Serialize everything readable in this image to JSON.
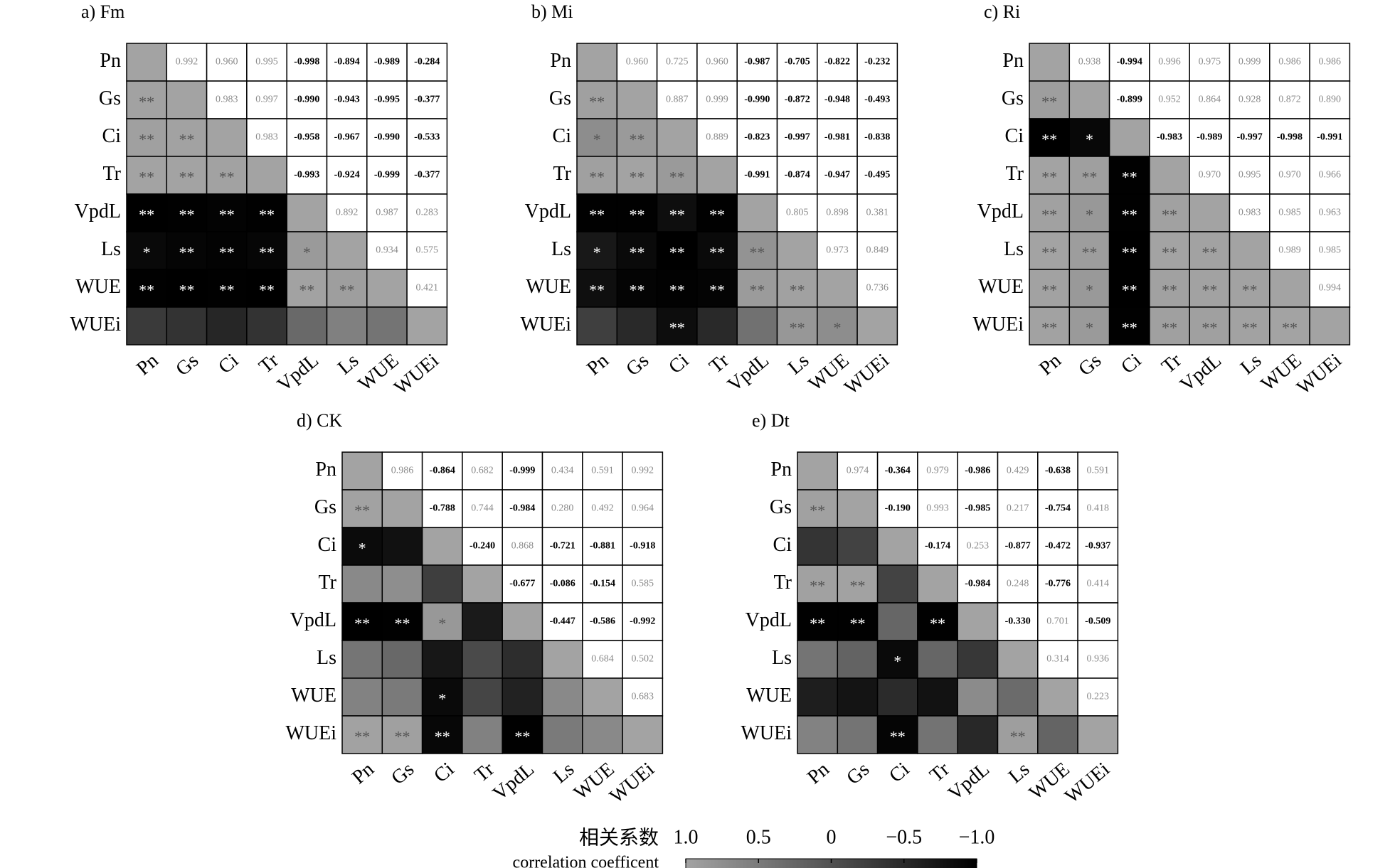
{
  "chart_data": [
    {
      "type": "heatmap",
      "title": "a) Fm",
      "labels": [
        "Pn",
        "Gs",
        "Ci",
        "Tr",
        "VpdL",
        "Ls",
        "WUE",
        "WUEi"
      ],
      "values": [
        [
          0.992,
          0.96,
          0.995,
          -0.998,
          -0.894,
          -0.989,
          -0.284
        ],
        [
          0.983,
          0.997,
          -0.99,
          -0.943,
          -0.995,
          -0.377
        ],
        [
          0.983,
          -0.958,
          -0.967,
          -0.99,
          -0.533
        ],
        [
          -0.993,
          -0.924,
          -0.999,
          -0.377
        ],
        [
          0.892,
          0.987,
          0.283
        ],
        [
          0.934,
          0.575
        ],
        [
          0.421
        ]
      ],
      "value_labels": [
        [
          "0.992",
          "0.960",
          "0.995",
          "-0.998",
          "-0.894",
          "-0.989",
          "-0.284"
        ],
        [
          "0.983",
          "0.997",
          "-0.990",
          "-0.943",
          "-0.995",
          "-0.377"
        ],
        [
          "0.983",
          "-0.958",
          "-0.967",
          "-0.990",
          "-0.533"
        ],
        [
          "-0.993",
          "-0.924",
          "-0.999",
          "-0.377"
        ],
        [
          "0.892",
          "0.987",
          "0.283"
        ],
        [
          "0.934",
          "0.575"
        ],
        [
          "0.421"
        ]
      ],
      "significance": [
        [
          "**"
        ],
        [
          "**",
          "**"
        ],
        [
          "**",
          "**",
          "**"
        ],
        [
          "**",
          "**",
          "**",
          "**"
        ],
        [
          "*",
          "**",
          "**",
          "**",
          "*"
        ],
        [
          "**",
          "**",
          "**",
          "**",
          "**",
          "**"
        ],
        [
          null,
          null,
          null,
          null,
          null,
          null,
          null
        ]
      ]
    },
    {
      "type": "heatmap",
      "title": "b) Mi",
      "labels": [
        "Pn",
        "Gs",
        "Ci",
        "Tr",
        "VpdL",
        "Ls",
        "WUE",
        "WUEi"
      ],
      "values": [
        [
          0.96,
          0.725,
          0.96,
          -0.987,
          -0.705,
          -0.822,
          -0.232
        ],
        [
          0.887,
          0.999,
          -0.99,
          -0.872,
          -0.948,
          -0.493
        ],
        [
          0.889,
          -0.823,
          -0.997,
          -0.981,
          -0.838
        ],
        [
          -0.991,
          -0.874,
          -0.947,
          -0.495
        ],
        [
          0.805,
          0.898,
          0.381
        ],
        [
          0.973,
          0.849
        ],
        [
          0.736
        ]
      ],
      "value_labels": [
        [
          "0.960",
          "0.725",
          "0.960",
          "-0.987",
          "-0.705",
          "-0.822",
          "-0.232"
        ],
        [
          "0.887",
          "0.999",
          "-0.990",
          "-0.872",
          "-0.948",
          "-0.493"
        ],
        [
          "0.889",
          "-0.823",
          "-0.997",
          "-0.981",
          "-0.838"
        ],
        [
          "-0.991",
          "-0.874",
          "-0.947",
          "-0.495"
        ],
        [
          "0.805",
          "0.898",
          "0.381"
        ],
        [
          "0.973",
          "0.849"
        ],
        [
          "0.736"
        ]
      ],
      "significance": [
        [
          "**"
        ],
        [
          "*",
          "**"
        ],
        [
          "**",
          "**",
          "**"
        ],
        [
          "**",
          "**",
          "**",
          "**"
        ],
        [
          "*",
          "**",
          "**",
          "**",
          "**"
        ],
        [
          "**",
          "**",
          "**",
          "**",
          "**",
          "**"
        ],
        [
          null,
          null,
          "**",
          null,
          null,
          "**",
          "*"
        ]
      ]
    },
    {
      "type": "heatmap",
      "title": "c) Ri",
      "labels": [
        "Pn",
        "Gs",
        "Ci",
        "Tr",
        "VpdL",
        "Ls",
        "WUE",
        "WUEi"
      ],
      "values": [
        [
          0.938,
          -0.994,
          0.996,
          0.975,
          0.999,
          0.986,
          0.986
        ],
        [
          -0.899,
          0.952,
          0.864,
          0.928,
          0.872,
          0.89
        ],
        [
          -0.983,
          -0.989,
          -0.997,
          -0.998,
          -0.991
        ],
        [
          0.97,
          0.995,
          0.97,
          0.966
        ],
        [
          0.983,
          0.985,
          0.963
        ],
        [
          0.989,
          0.985
        ],
        [
          0.994
        ]
      ],
      "value_labels": [
        [
          "0.938",
          "-0.994",
          "0.996",
          "0.975",
          "0.999",
          "0.986",
          "0.986"
        ],
        [
          "-0.899",
          "0.952",
          "0.864",
          "0.928",
          "0.872",
          "0.890"
        ],
        [
          "-0.983",
          "-0.989",
          "-0.997",
          "-0.998",
          "-0.991"
        ],
        [
          "0.970",
          "0.995",
          "0.970",
          "0.966"
        ],
        [
          "0.983",
          "0.985",
          "0.963"
        ],
        [
          "0.989",
          "0.985"
        ],
        [
          "0.994"
        ]
      ],
      "significance": [
        [
          "**"
        ],
        [
          "**",
          "*"
        ],
        [
          "**",
          "**",
          "**"
        ],
        [
          "**",
          "*",
          "**",
          "**"
        ],
        [
          "**",
          "**",
          "**",
          "**",
          "**"
        ],
        [
          "**",
          "*",
          "**",
          "**",
          "**",
          "**"
        ],
        [
          "**",
          "*",
          "**",
          "**",
          "**",
          "**",
          "**"
        ]
      ]
    },
    {
      "type": "heatmap",
      "title": "d) CK",
      "labels": [
        "Pn",
        "Gs",
        "Ci",
        "Tr",
        "VpdL",
        "Ls",
        "WUE",
        "WUEi"
      ],
      "values": [
        [
          0.986,
          -0.864,
          0.682,
          -0.999,
          0.434,
          0.591,
          0.992
        ],
        [
          -0.788,
          0.744,
          -0.984,
          0.28,
          0.492,
          0.964
        ],
        [
          -0.24,
          0.868,
          -0.721,
          -0.881,
          -0.918
        ],
        [
          -0.677,
          -0.086,
          -0.154,
          0.585
        ],
        [
          -0.447,
          -0.586,
          -0.992
        ],
        [
          0.684,
          0.502
        ],
        [
          0.683
        ]
      ],
      "value_labels": [
        [
          "0.986",
          "-0.864",
          "0.682",
          "-0.999",
          "0.434",
          "0.591",
          "0.992"
        ],
        [
          "-0.788",
          "0.744",
          "-0.984",
          "0.280",
          "0.492",
          "0.964"
        ],
        [
          "-0.240",
          "0.868",
          "-0.721",
          "-0.881",
          "-0.918"
        ],
        [
          "-0.677",
          "-0.086",
          "-0.154",
          "0.585"
        ],
        [
          "-0.447",
          "-0.586",
          "-0.992"
        ],
        [
          "0.684",
          "0.502"
        ],
        [
          "0.683"
        ]
      ],
      "significance": [
        [
          "**"
        ],
        [
          "*",
          null
        ],
        [
          null,
          null,
          null
        ],
        [
          "**",
          "**",
          "*",
          null
        ],
        [
          null,
          null,
          null,
          null,
          null
        ],
        [
          null,
          null,
          "*",
          null,
          null,
          null
        ],
        [
          "**",
          "**",
          "**",
          null,
          "**",
          null,
          null
        ]
      ]
    },
    {
      "type": "heatmap",
      "title": "e) Dt",
      "labels": [
        "Pn",
        "Gs",
        "Ci",
        "Tr",
        "VpdL",
        "Ls",
        "WUE",
        "WUEi"
      ],
      "values": [
        [
          0.974,
          -0.364,
          0.979,
          -0.986,
          0.429,
          -0.638,
          0.591
        ],
        [
          -0.19,
          0.993,
          -0.985,
          0.217,
          -0.754,
          0.418
        ],
        [
          -0.174,
          0.253,
          -0.877,
          -0.472,
          -0.937
        ],
        [
          -0.984,
          0.248,
          -0.776,
          0.414
        ],
        [
          -0.33,
          0.701,
          -0.509
        ],
        [
          0.314,
          0.936
        ],
        [
          0.223
        ]
      ],
      "value_labels": [
        [
          "0.974",
          "-0.364",
          "0.979",
          "-0.986",
          "0.429",
          "-0.638",
          "0.591"
        ],
        [
          "-0.190",
          "0.993",
          "-0.985",
          "0.217",
          "-0.754",
          "0.418"
        ],
        [
          "-0.174",
          "0.253",
          "-0.877",
          "-0.472",
          "-0.937"
        ],
        [
          "-0.984",
          "0.248",
          "-0.776",
          "0.414"
        ],
        [
          "-0.330",
          "0.701",
          "-0.509"
        ],
        [
          "0.314",
          "0.936"
        ],
        [
          "0.223"
        ]
      ],
      "significance": [
        [
          "**"
        ],
        [
          null,
          null
        ],
        [
          "**",
          "**",
          null
        ],
        [
          "**",
          "**",
          null,
          "**"
        ],
        [
          null,
          null,
          "*",
          null,
          null
        ],
        [
          null,
          null,
          null,
          null,
          null,
          null
        ],
        [
          null,
          null,
          "**",
          null,
          null,
          "**",
          null
        ]
      ]
    }
  ],
  "colorbar": {
    "title": "相关系数",
    "subtitle": "correlation coefficent",
    "lim": [
      1,
      -1
    ],
    "ticks": [
      {
        "value": 1,
        "label": "1.0"
      },
      0.5,
      0,
      {
        "value": -0.5,
        "label": "−0.5"
      },
      {
        "value": -1,
        "label": "−1.0"
      }
    ],
    "colors": [
      "#a3a3a3",
      "#000000"
    ]
  }
}
